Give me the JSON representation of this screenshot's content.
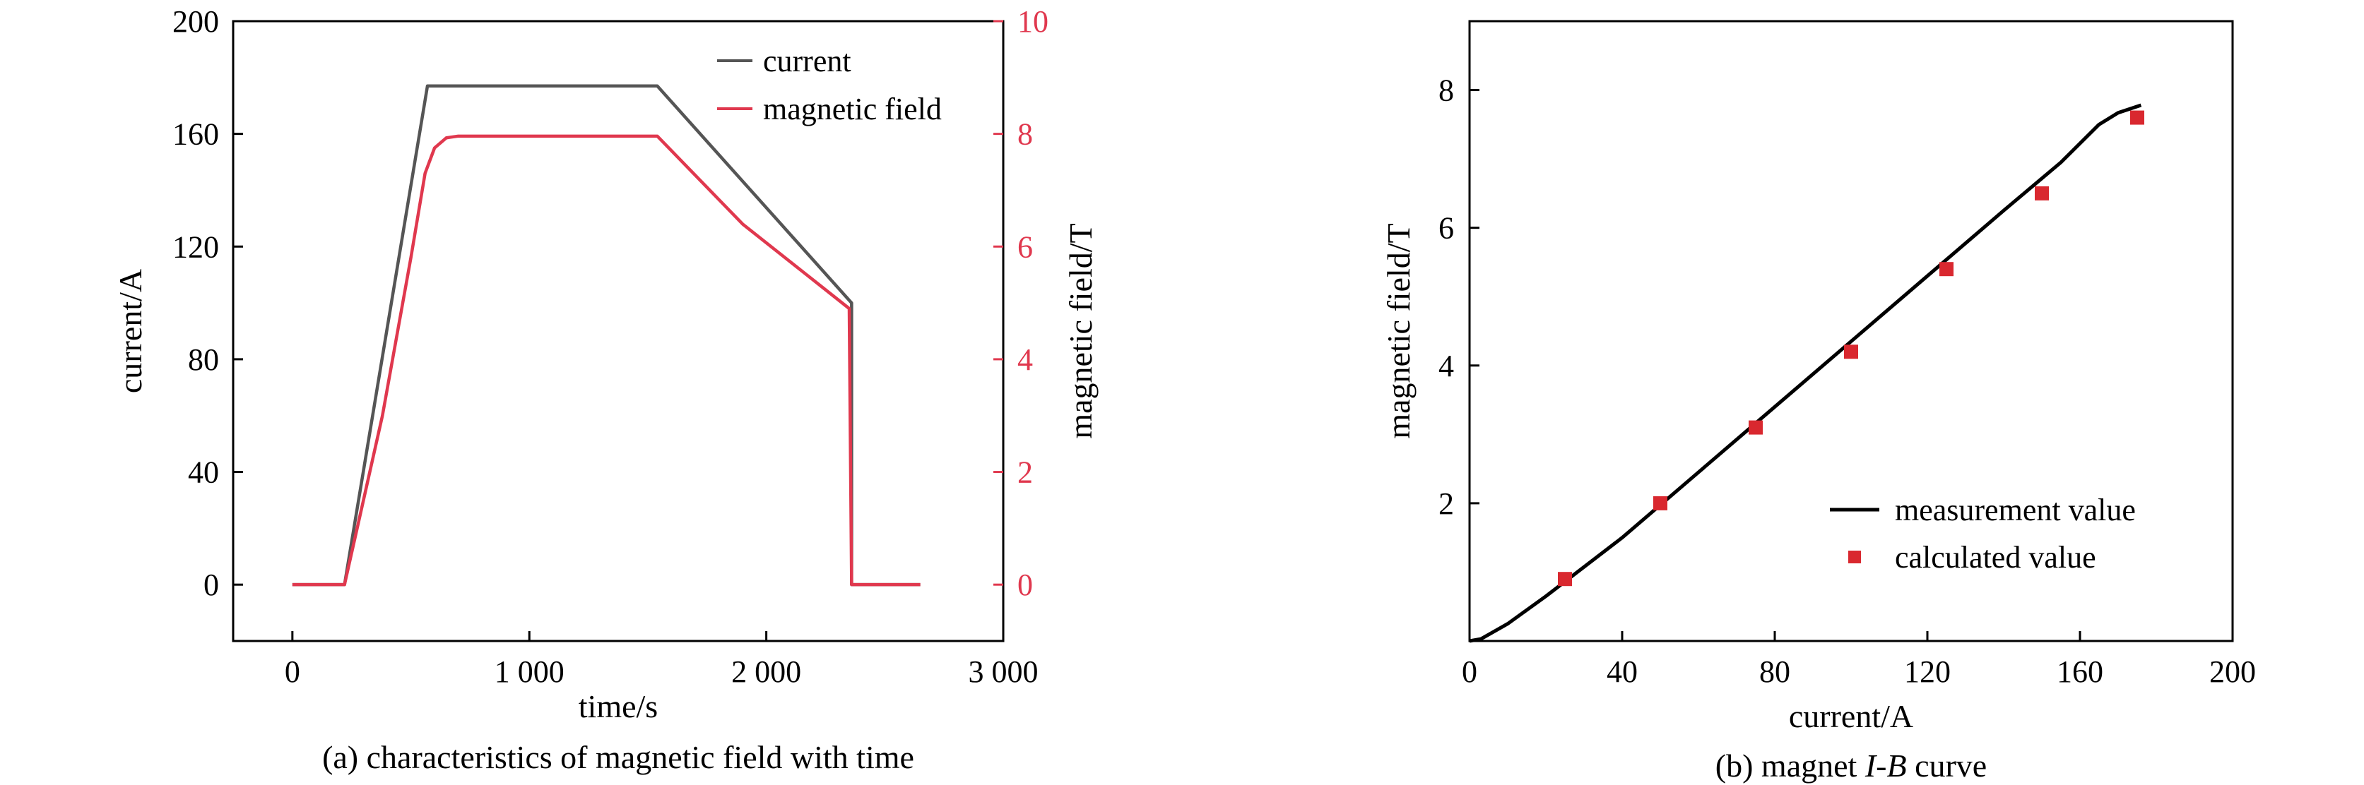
{
  "chart_data": [
    {
      "type": "line",
      "caption": "(a) characteristics of magnetic field with time",
      "xlabel": "time/s",
      "ylabel_left": "current/A",
      "ylabel_right": "magnetic field/T",
      "xlim": [
        -250,
        3000
      ],
      "ylim_left": [
        -20,
        200
      ],
      "ylim_right": [
        -1,
        10
      ],
      "xticks": [
        0,
        1000,
        2000,
        3000
      ],
      "xtick_labels": [
        "0",
        "1 000",
        "2 000",
        "3 000"
      ],
      "yticks_left": [
        0,
        40,
        80,
        120,
        160,
        200
      ],
      "yticks_right": [
        0,
        2,
        4,
        6,
        8,
        10
      ],
      "grid": false,
      "legend_position": "top-right",
      "colors": {
        "current": "#555555",
        "magnetic_field": "#e0384e",
        "right_axis": "#e0384e"
      },
      "series": [
        {
          "name": "current",
          "axis": "left",
          "x": [
            0,
            220,
            570,
            1540,
            2360,
            2360,
            2650
          ],
          "y": [
            0,
            0,
            177,
            177,
            100,
            0,
            0
          ]
        },
        {
          "name": "magnetic field",
          "axis": "right",
          "x": [
            0,
            220,
            380,
            500,
            560,
            600,
            650,
            700,
            1540,
            1900,
            2350,
            2360,
            2650
          ],
          "y": [
            0,
            0,
            3.0,
            5.8,
            7.3,
            7.75,
            7.93,
            7.96,
            7.96,
            6.4,
            4.9,
            0,
            0
          ]
        }
      ]
    },
    {
      "type": "line",
      "caption_prefix": "(b) magnet ",
      "caption_italic": "I-B",
      "caption_suffix": " curve",
      "xlabel": "current/A",
      "ylabel": "magnetic field/T",
      "xlim": [
        0,
        200
      ],
      "ylim": [
        0,
        9
      ],
      "xticks": [
        0,
        40,
        80,
        120,
        160,
        200
      ],
      "yticks": [
        2,
        4,
        6,
        8
      ],
      "grid": false,
      "legend_position": "bottom-right",
      "colors": {
        "measurement": "#000000",
        "calculated": "#d9282f"
      },
      "series": [
        {
          "name": "measurement value",
          "style": "line",
          "x": [
            0,
            3,
            10,
            20,
            40,
            60,
            80,
            100,
            120,
            140,
            155,
            165,
            170,
            176
          ],
          "y": [
            0,
            0.03,
            0.25,
            0.65,
            1.5,
            2.45,
            3.4,
            4.35,
            5.3,
            6.25,
            6.95,
            7.5,
            7.67,
            7.78
          ]
        },
        {
          "name": "calculated value",
          "style": "marker",
          "x": [
            25,
            50,
            75,
            100,
            125,
            150,
            175
          ],
          "y": [
            0.9,
            2.0,
            3.1,
            4.2,
            5.4,
            6.5,
            7.6
          ]
        }
      ]
    }
  ]
}
